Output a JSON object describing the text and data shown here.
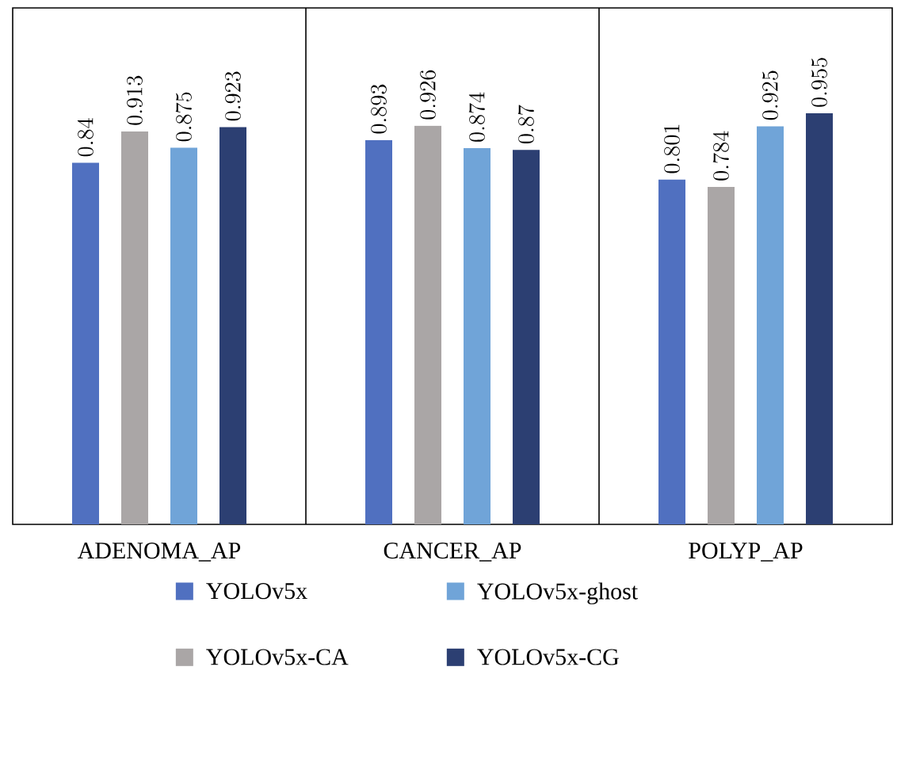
{
  "chart_data": {
    "type": "bar",
    "categories": [
      "ADENOMA_AP",
      "CANCER_AP",
      "POLYP_AP"
    ],
    "series": [
      {
        "name": "YOLOv5x",
        "color": "#5070c0",
        "values": [
          0.84,
          0.893,
          0.801
        ]
      },
      {
        "name": "YOLOv5x-CA",
        "color": "#aaa6a6",
        "values": [
          0.913,
          0.926,
          0.784
        ]
      },
      {
        "name": "YOLOv5x-ghost",
        "color": "#70a4d8",
        "values": [
          0.875,
          0.874,
          0.925
        ]
      },
      {
        "name": "YOLOv5x-CG",
        "color": "#2c3f72",
        "values": [
          0.923,
          0.87,
          0.955
        ]
      }
    ],
    "ylim": [
      0,
      1.2
    ],
    "data_labels": true,
    "legend": "bottom",
    "tick_labels": "x"
  }
}
